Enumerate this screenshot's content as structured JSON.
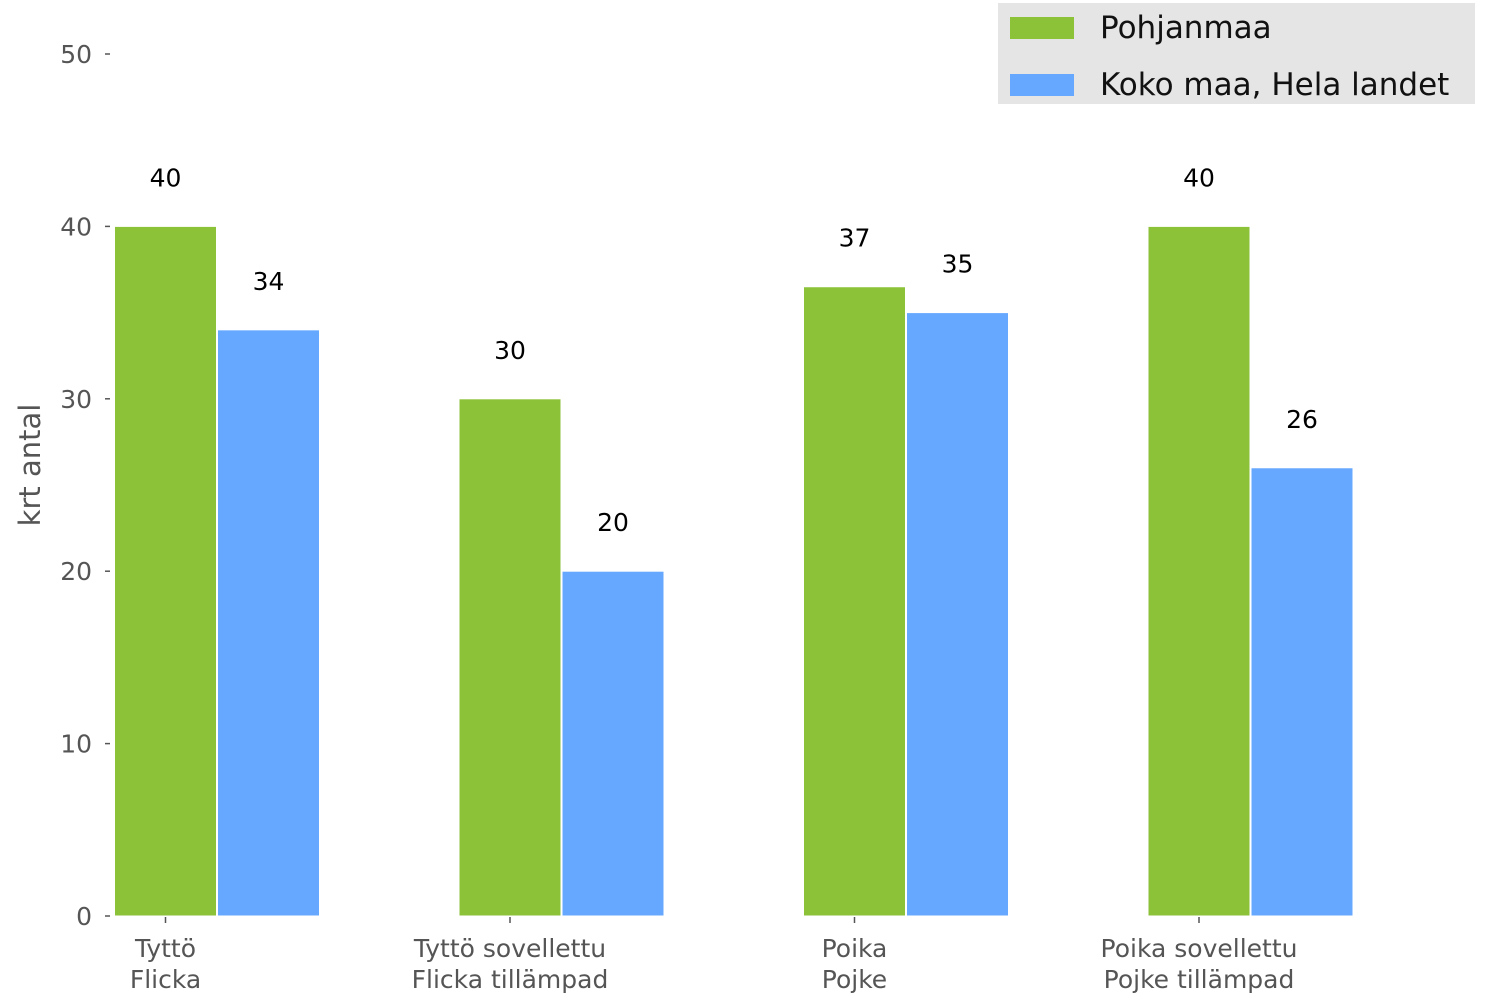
{
  "chart_data": {
    "type": "bar",
    "title": "",
    "xlabel": "",
    "ylabel": "krt antal",
    "ylim": [
      0,
      50
    ],
    "yticks": [
      0,
      10,
      20,
      30,
      40,
      50
    ],
    "grid": false,
    "legend_position": "top-right",
    "categories": [
      [
        "Tyttö",
        "Flicka"
      ],
      [
        "Tyttö sovellettu",
        "Flicka tillämpad"
      ],
      [
        "Poika",
        "Pojke"
      ],
      [
        "Poika sovellettu",
        "Pojke tillämpad"
      ]
    ],
    "series": [
      {
        "name": "Pohjanmaa",
        "color": "#8bc238",
        "values": [
          40,
          30,
          36.5,
          40
        ],
        "labels": [
          "40",
          "30",
          "37",
          "40"
        ]
      },
      {
        "name": "Koko maa, Hela landet",
        "color": "#66a8ff",
        "values": [
          34,
          20,
          35,
          26
        ],
        "labels": [
          "34",
          "20",
          "35",
          "26"
        ]
      }
    ]
  },
  "colors": {
    "axis_text": "#555555",
    "data_label": "#000000",
    "legend_background": "#e5e5e5"
  }
}
